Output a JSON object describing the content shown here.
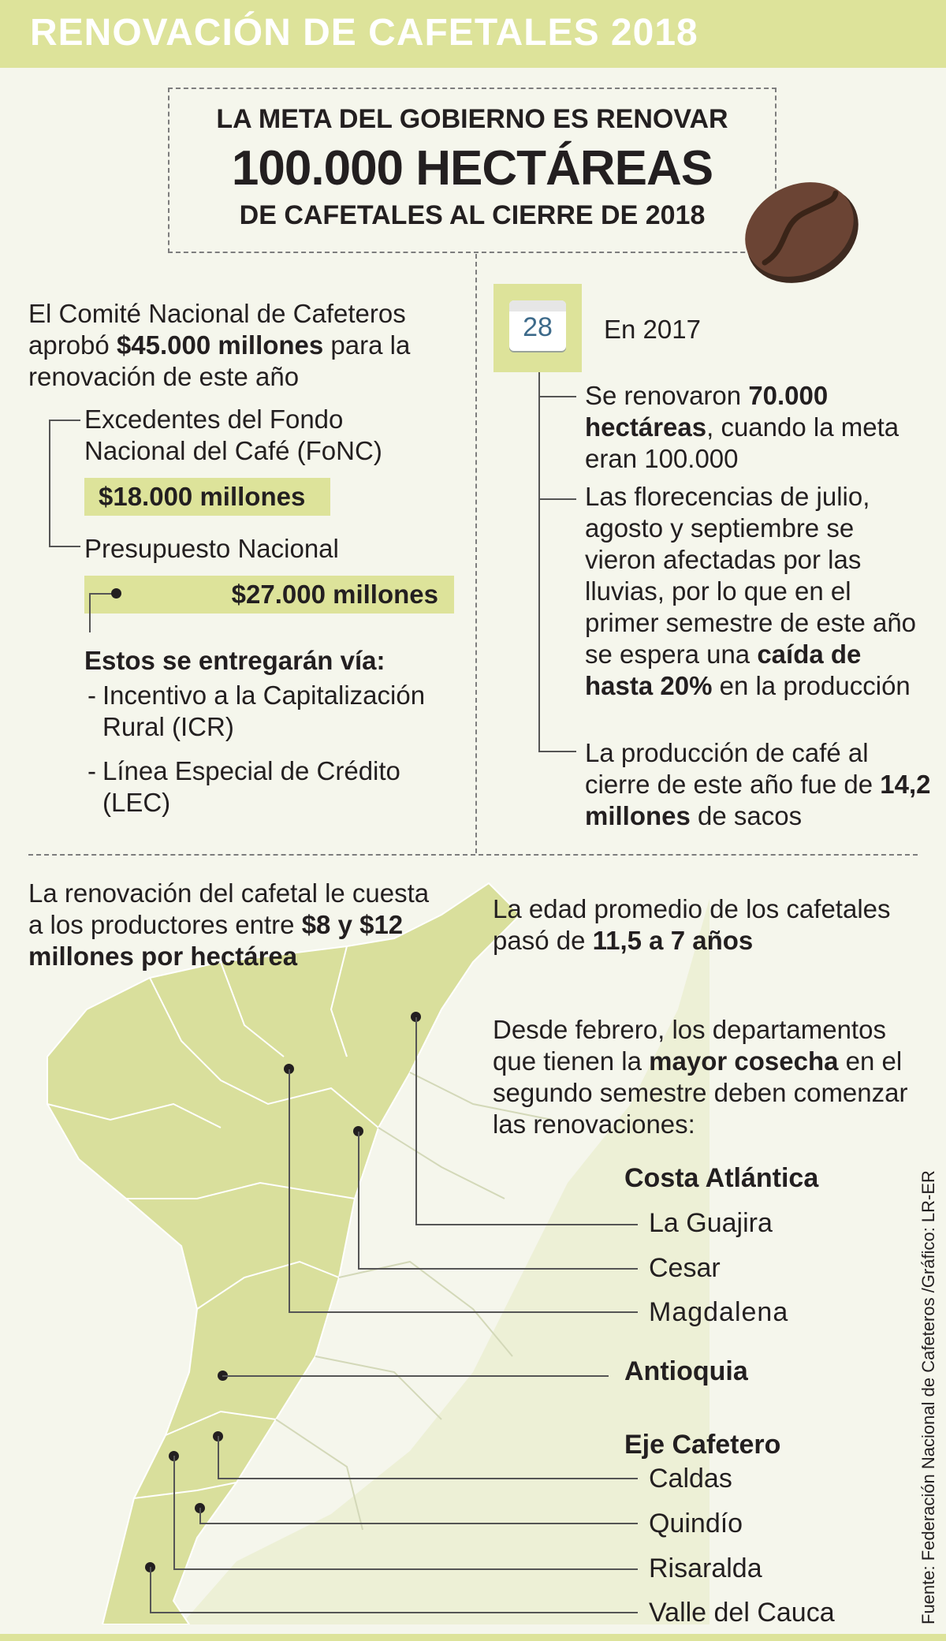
{
  "title": "RENOVACIÓN DE CAFETALES 2018",
  "goal": {
    "line1": "LA META DEL GOBIERNO ES RENOVAR",
    "line2": "100.000 HECTÁREAS",
    "line3": "DE CAFETALES AL CIERRE DE 2018"
  },
  "funding": {
    "intro_pre": "El Comité Nacional de Cafeteros aprobó ",
    "intro_bold": "$45.000 millones",
    "intro_post": " para la renovación de este año",
    "source1_label": "Excedentes del Fondo Nacional del Café (FoNC)",
    "source1_amount": "$18.000 millones",
    "source2_label": "Presupuesto Nacional",
    "source2_amount": "$27.000 millones",
    "delivery_heading": "Estos se entregarán vía:",
    "delivery_items": [
      "Incentivo a la Capitalización Rural (ICR)",
      "Línea Especial de Crédito (LEC)"
    ]
  },
  "year2017": {
    "calendar_day": "28",
    "heading": "En 2017",
    "fact1_pre": "Se renovaron ",
    "fact1_bold": "70.000 hectáreas",
    "fact1_post": ", cuando la meta eran 100.000",
    "fact2_pre": "Las florecencias de julio, agosto y septiembre se vieron afectadas por las lluvias, por lo que en el primer semestre de este año se espera una ",
    "fact2_bold": "caída de hasta 20%",
    "fact2_post": " en la producción",
    "fact3_pre": "La producción de café al cierre de este año fue de ",
    "fact3_bold": "14,2 millones",
    "fact3_post": " de sacos"
  },
  "cost": {
    "pre": "La renovación del cafetal le cuesta a los productores entre ",
    "bold": "$8 y $12 millones por hectárea"
  },
  "age": {
    "pre": "La edad promedio de los cafetales pasó de ",
    "bold": "11,5 a 7 años"
  },
  "since_feb": {
    "pre": "Desde febrero, los departamentos que tienen la ",
    "bold": "mayor cosecha",
    "post": " en el segundo semestre deben comenzar las renovaciones:"
  },
  "regions": {
    "costa": "Costa Atlántica",
    "guajira": "La Guajira",
    "cesar": "Cesar",
    "magdalena": "Magdalena",
    "antioquia": "Antioquia",
    "eje": "Eje Cafetero",
    "caldas": "Caldas",
    "quindio": "Quindío",
    "risaralda": "Risaralda",
    "valle": "Valle del Cauca"
  },
  "source": "Fuente: Federación Nacional de Cafeteros /Gráfico: LR-ER",
  "colors": {
    "accent": "#dde39a",
    "map_fill": "#d9df9c",
    "map_light": "#e9edcc",
    "background": "#f5f6ec",
    "coffee_bean": "#5a3a2a"
  },
  "icons": {
    "calendar": "calendar-icon",
    "bean": "coffee-bean-icon",
    "map": "colombia-map"
  }
}
